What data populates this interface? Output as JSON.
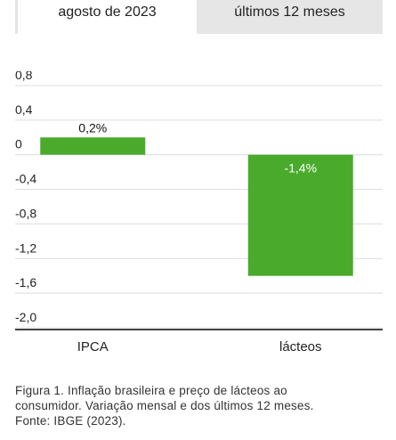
{
  "tabs": [
    {
      "label": "agosto de 2023",
      "active": true
    },
    {
      "label": "últimos 12 meses",
      "active": false
    }
  ],
  "chart_data": {
    "type": "bar",
    "categories": [
      "IPCA",
      "lácteos"
    ],
    "values": [
      0.2,
      -1.4
    ],
    "data_labels": [
      "0,2%",
      "-1,4%"
    ],
    "ylim": [
      -2.0,
      0.8
    ],
    "yticks": [
      0.8,
      0.4,
      0,
      -0.4,
      -0.8,
      -1.2,
      -1.6,
      -2.0
    ],
    "ytick_labels": [
      "0,8",
      "0,4",
      "0",
      "-0,4",
      "-0,8",
      "-1,2",
      "-1,6",
      "-2,0"
    ],
    "bar_color": "#4aaa2c",
    "grid": true,
    "title": "",
    "xlabel": "",
    "ylabel": ""
  },
  "caption": {
    "line1": "Figura 1. Inflação brasileira e preço de lácteos ao",
    "line2": "consumidor. Variação mensal e dos últimos 12 meses.",
    "line3": "Fonte: IBGE (2023)."
  }
}
